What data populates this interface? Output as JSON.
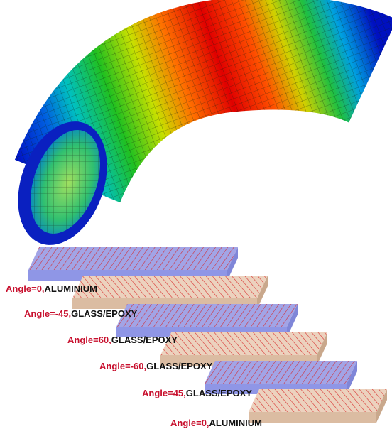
{
  "layers": [
    {
      "angle": "Angle=0,",
      "material": "ALUMINIUM"
    },
    {
      "angle": "Angle=-45,",
      "material": "GLASS/EPOXY"
    },
    {
      "angle": "Angle=60,",
      "material": "GLASS/EPOXY"
    },
    {
      "angle": "Angle=-60,",
      "material": "GLASS/EPOXY"
    },
    {
      "angle": "Angle=45,",
      "material": "GLASS/EPOXY"
    },
    {
      "angle": "Angle=0,",
      "material": "ALUMINIUM"
    }
  ]
}
